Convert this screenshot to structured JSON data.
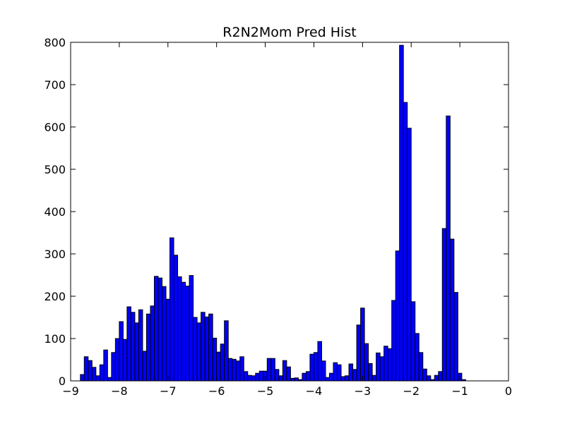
{
  "chart_data": {
    "type": "bar",
    "title": "R2N2Mom Pred Hist",
    "xlabel": "",
    "ylabel": "",
    "xlim": [
      -9,
      0
    ],
    "ylim": [
      0,
      800
    ],
    "x_ticks": [
      {
        "value": -9,
        "label": "−9"
      },
      {
        "value": -8,
        "label": "−8"
      },
      {
        "value": -7,
        "label": "−7"
      },
      {
        "value": -6,
        "label": "−6"
      },
      {
        "value": -5,
        "label": "−5"
      },
      {
        "value": -4,
        "label": "−4"
      },
      {
        "value": -3,
        "label": "−3"
      },
      {
        "value": -2,
        "label": "−2"
      },
      {
        "value": -1,
        "label": "−1"
      },
      {
        "value": 0,
        "label": "0"
      }
    ],
    "y_ticks": [
      {
        "value": 0,
        "label": "0"
      },
      {
        "value": 100,
        "label": "100"
      },
      {
        "value": 200,
        "label": "200"
      },
      {
        "value": 300,
        "label": "300"
      },
      {
        "value": 400,
        "label": "400"
      },
      {
        "value": 500,
        "label": "500"
      },
      {
        "value": 600,
        "label": "600"
      },
      {
        "value": 700,
        "label": "700"
      },
      {
        "value": 800,
        "label": "800"
      }
    ],
    "grid": false,
    "bar_color": "#0000ff",
    "bin_start": -8.8,
    "bin_width": 0.08,
    "values": [
      15,
      57,
      48,
      32,
      12,
      38,
      73,
      8,
      67,
      100,
      140,
      98,
      175,
      162,
      137,
      168,
      70,
      158,
      177,
      247,
      243,
      223,
      193,
      338,
      297,
      246,
      233,
      224,
      249,
      150,
      137,
      162,
      151,
      158,
      101,
      68,
      87,
      142,
      53,
      51,
      47,
      57,
      22,
      13,
      12,
      18,
      23,
      23,
      53,
      53,
      27,
      12,
      48,
      33,
      6,
      7,
      3,
      18,
      22,
      63,
      67,
      93,
      47,
      8,
      18,
      43,
      38,
      10,
      12,
      40,
      27,
      132,
      172,
      88,
      41,
      13,
      66,
      57,
      82,
      76,
      190,
      307,
      793,
      658,
      597,
      187,
      112,
      67,
      28,
      12,
      3,
      13,
      22,
      360,
      626,
      335,
      209,
      18,
      3,
      0
    ]
  }
}
